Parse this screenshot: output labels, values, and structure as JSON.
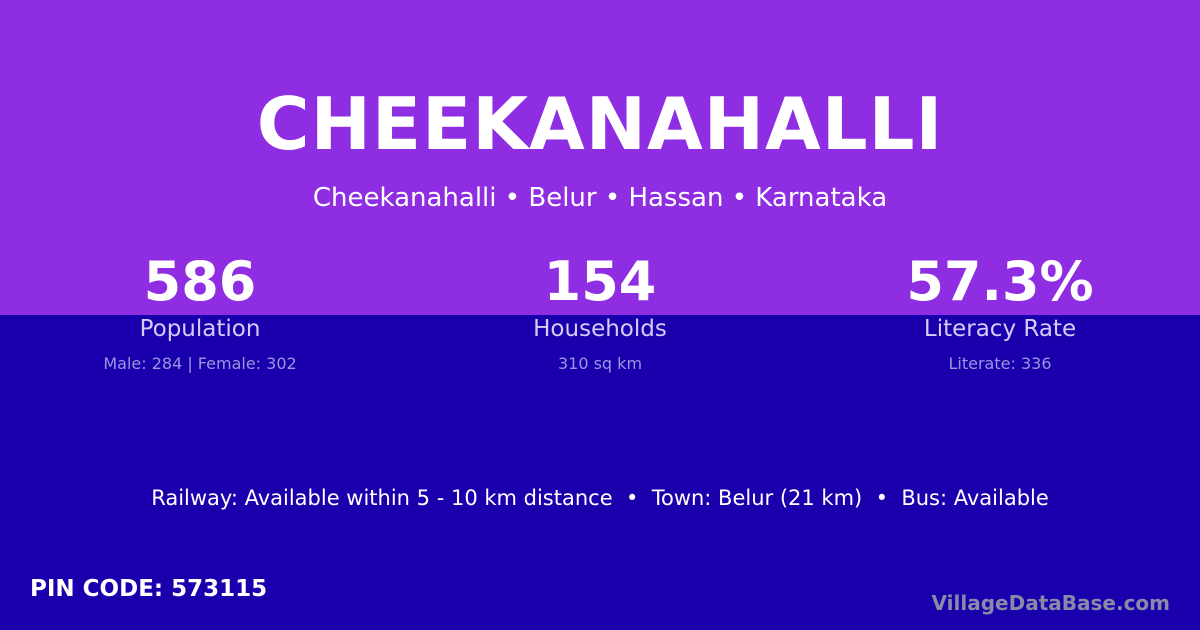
{
  "colors": {
    "top_background": "#8e2de2",
    "bottom_background": "#1900ac"
  },
  "title": "CHEEKANAHALLI",
  "subtitle": "Cheekanahalli • Belur • Hassan • Karnataka",
  "stats": [
    {
      "value": "586",
      "label": "Population",
      "detail": "Male: 284 | Female: 302"
    },
    {
      "value": "154",
      "label": "Households",
      "detail": "310 sq km"
    },
    {
      "value": "57.3%",
      "label": "Literacy Rate",
      "detail": "Literate: 336"
    }
  ],
  "connectivity": "Railway: Available within 5 - 10 km distance  •  Town: Belur (21 km)  •  Bus: Available",
  "pin_code": "PIN CODE: 573115",
  "brand": "VillageDataBase.com"
}
